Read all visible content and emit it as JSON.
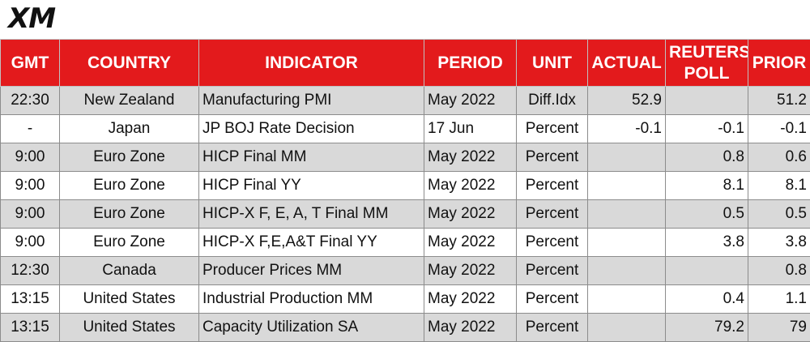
{
  "brand": {
    "logo_text": "XM"
  },
  "table": {
    "headers": {
      "gmt": "GMT",
      "country": "COUNTRY",
      "indicator": "INDICATOR",
      "period": "PERIOD",
      "unit": "UNIT",
      "actual": "ACTUAL",
      "reuters_poll_line1": "REUTERS",
      "reuters_poll_line2": "POLL",
      "prior": "PRIOR"
    },
    "rows": [
      {
        "gmt": "22:30",
        "country": "New Zealand",
        "indicator": "Manufacturing PMI",
        "period": "May 2022",
        "unit": "Diff.Idx",
        "actual": "52.9",
        "poll": "",
        "prior": "51.2"
      },
      {
        "gmt": "-",
        "country": "Japan",
        "indicator": "JP BOJ Rate Decision",
        "period": "17 Jun",
        "unit": "Percent",
        "actual": "-0.1",
        "poll": "-0.1",
        "prior": "-0.1"
      },
      {
        "gmt": "9:00",
        "country": "Euro Zone",
        "indicator": "HICP Final MM",
        "period": "May 2022",
        "unit": "Percent",
        "actual": "",
        "poll": "0.8",
        "prior": "0.6"
      },
      {
        "gmt": "9:00",
        "country": "Euro Zone",
        "indicator": "HICP Final YY",
        "period": "May 2022",
        "unit": "Percent",
        "actual": "",
        "poll": "8.1",
        "prior": "8.1"
      },
      {
        "gmt": "9:00",
        "country": "Euro Zone",
        "indicator": "HICP-X F, E, A, T Final MM",
        "period": "May 2022",
        "unit": "Percent",
        "actual": "",
        "poll": "0.5",
        "prior": "0.5"
      },
      {
        "gmt": "9:00",
        "country": "Euro Zone",
        "indicator": "HICP-X F,E,A&T Final YY",
        "period": "May 2022",
        "unit": "Percent",
        "actual": "",
        "poll": "3.8",
        "prior": "3.8"
      },
      {
        "gmt": "12:30",
        "country": "Canada",
        "indicator": "Producer Prices MM",
        "period": "May 2022",
        "unit": "Percent",
        "actual": "",
        "poll": "",
        "prior": "0.8"
      },
      {
        "gmt": "13:15",
        "country": "United States",
        "indicator": "Industrial Production MM",
        "period": "May 2022",
        "unit": "Percent",
        "actual": "",
        "poll": "0.4",
        "prior": "1.1"
      },
      {
        "gmt": "13:15",
        "country": "United States",
        "indicator": "Capacity Utilization SA",
        "period": "May 2022",
        "unit": "Percent",
        "actual": "",
        "poll": "79.2",
        "prior": "79"
      }
    ]
  },
  "colors": {
    "header_bg": "#e31a1c",
    "header_text": "#ffffff",
    "row_shade": "#d9d9d9"
  }
}
